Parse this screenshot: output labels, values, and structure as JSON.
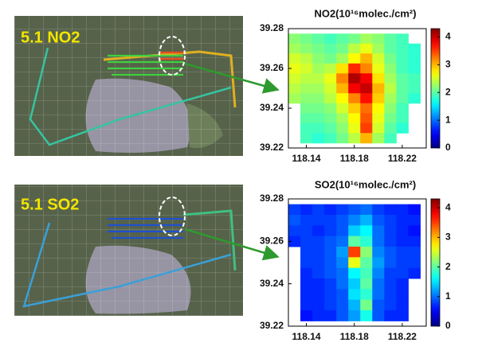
{
  "maps": [
    {
      "label": "5.1  NO2"
    },
    {
      "label": "5.1  SO2"
    }
  ],
  "chart_data": [
    {
      "type": "heatmap",
      "title": "NO2(10¹⁶molec./cm²)",
      "x": [
        118.13,
        118.14,
        118.15,
        118.16,
        118.17,
        118.18,
        118.19,
        118.2,
        118.21,
        118.22,
        118.23
      ],
      "y": [
        39.275,
        39.27,
        39.265,
        39.26,
        39.255,
        39.25,
        39.245,
        39.24,
        39.235,
        39.23,
        39.225
      ],
      "z": [
        [
          2.2,
          2.1,
          2.0,
          1.9,
          2.0,
          2.1,
          2.3,
          2.2,
          2.0,
          1.9,
          null
        ],
        [
          2.3,
          2.2,
          2.1,
          2.0,
          2.1,
          2.4,
          2.6,
          2.3,
          2.0,
          1.9,
          1.8
        ],
        [
          2.5,
          2.4,
          2.2,
          2.1,
          2.3,
          2.7,
          3.0,
          2.5,
          2.1,
          1.9,
          1.8
        ],
        [
          2.6,
          2.5,
          2.3,
          2.4,
          2.8,
          3.6,
          3.2,
          2.6,
          2.2,
          1.9,
          1.8
        ],
        [
          2.5,
          2.4,
          2.4,
          2.6,
          3.2,
          4.1,
          3.8,
          2.8,
          2.3,
          2.0,
          1.9
        ],
        [
          2.4,
          2.3,
          2.3,
          2.5,
          3.0,
          3.8,
          4.0,
          3.0,
          2.4,
          2.0,
          1.9
        ],
        [
          2.3,
          2.2,
          2.2,
          2.4,
          2.7,
          3.2,
          3.7,
          2.9,
          2.3,
          2.0,
          1.8
        ],
        [
          null,
          2.1,
          2.1,
          2.2,
          2.5,
          2.9,
          3.3,
          2.7,
          2.2,
          1.9,
          null
        ],
        [
          null,
          2.0,
          2.0,
          2.1,
          2.3,
          2.7,
          3.4,
          2.6,
          2.1,
          1.9,
          null
        ],
        [
          null,
          1.9,
          1.9,
          2.0,
          2.2,
          2.6,
          3.5,
          2.5,
          2.0,
          1.8,
          null
        ],
        [
          null,
          1.9,
          1.8,
          1.9,
          2.1,
          2.4,
          3.0,
          2.3,
          1.9,
          null,
          null
        ]
      ],
      "xlim": [
        118.125,
        118.24
      ],
      "ylim": [
        39.22,
        39.28
      ],
      "xticks": [
        118.14,
        118.18,
        118.22
      ],
      "yticks": [
        39.22,
        39.24,
        39.26,
        39.28
      ],
      "clim": [
        0,
        4.3
      ],
      "cticks": [
        0,
        1,
        2,
        3,
        4
      ],
      "colormap": "jet"
    },
    {
      "type": "heatmap",
      "title": "SO2(10¹⁶molec./cm²)",
      "x": [
        118.13,
        118.14,
        118.15,
        118.16,
        118.17,
        118.18,
        118.19,
        118.2,
        118.21,
        118.22,
        118.23
      ],
      "y": [
        39.275,
        39.27,
        39.265,
        39.26,
        39.255,
        39.25,
        39.245,
        39.24,
        39.235,
        39.23,
        39.225
      ],
      "z": [
        [
          0.8,
          0.7,
          0.8,
          0.7,
          0.8,
          0.9,
          1.0,
          0.8,
          0.7,
          0.7,
          0.6
        ],
        [
          0.9,
          0.8,
          0.8,
          0.8,
          0.9,
          1.1,
          1.3,
          0.9,
          0.8,
          0.7,
          0.7
        ],
        [
          0.8,
          0.8,
          0.7,
          0.8,
          0.9,
          1.4,
          1.6,
          1.0,
          0.8,
          0.7,
          0.6
        ],
        [
          0.7,
          0.8,
          0.8,
          0.9,
          1.0,
          2.0,
          1.8,
          1.0,
          0.8,
          0.7,
          0.7
        ],
        [
          null,
          0.8,
          0.8,
          0.9,
          1.2,
          3.5,
          2.2,
          1.1,
          0.9,
          0.8,
          0.8
        ],
        [
          null,
          0.8,
          0.8,
          0.9,
          1.1,
          2.6,
          2.0,
          1.2,
          0.9,
          0.8,
          0.8
        ],
        [
          null,
          0.7,
          0.8,
          0.9,
          1.0,
          1.6,
          1.9,
          1.1,
          0.8,
          0.8,
          0.7
        ],
        [
          null,
          0.7,
          0.7,
          0.8,
          1.0,
          1.4,
          2.0,
          1.0,
          0.8,
          0.7,
          null
        ],
        [
          null,
          0.7,
          0.7,
          0.8,
          0.9,
          1.5,
          1.8,
          1.0,
          0.8,
          0.7,
          null
        ],
        [
          null,
          0.7,
          0.7,
          0.8,
          0.9,
          1.3,
          2.1,
          0.9,
          0.8,
          0.7,
          null
        ],
        [
          null,
          0.6,
          0.7,
          0.7,
          0.9,
          1.2,
          1.7,
          0.9,
          0.7,
          0.7,
          null
        ]
      ],
      "xlim": [
        118.125,
        118.24
      ],
      "ylim": [
        39.22,
        39.28
      ],
      "xticks": [
        118.14,
        118.18,
        118.22
      ],
      "yticks": [
        39.22,
        39.24,
        39.26,
        39.28
      ],
      "clim": [
        0,
        4.3
      ],
      "cticks": [
        0,
        1,
        2,
        3,
        4
      ],
      "colormap": "jet"
    }
  ]
}
